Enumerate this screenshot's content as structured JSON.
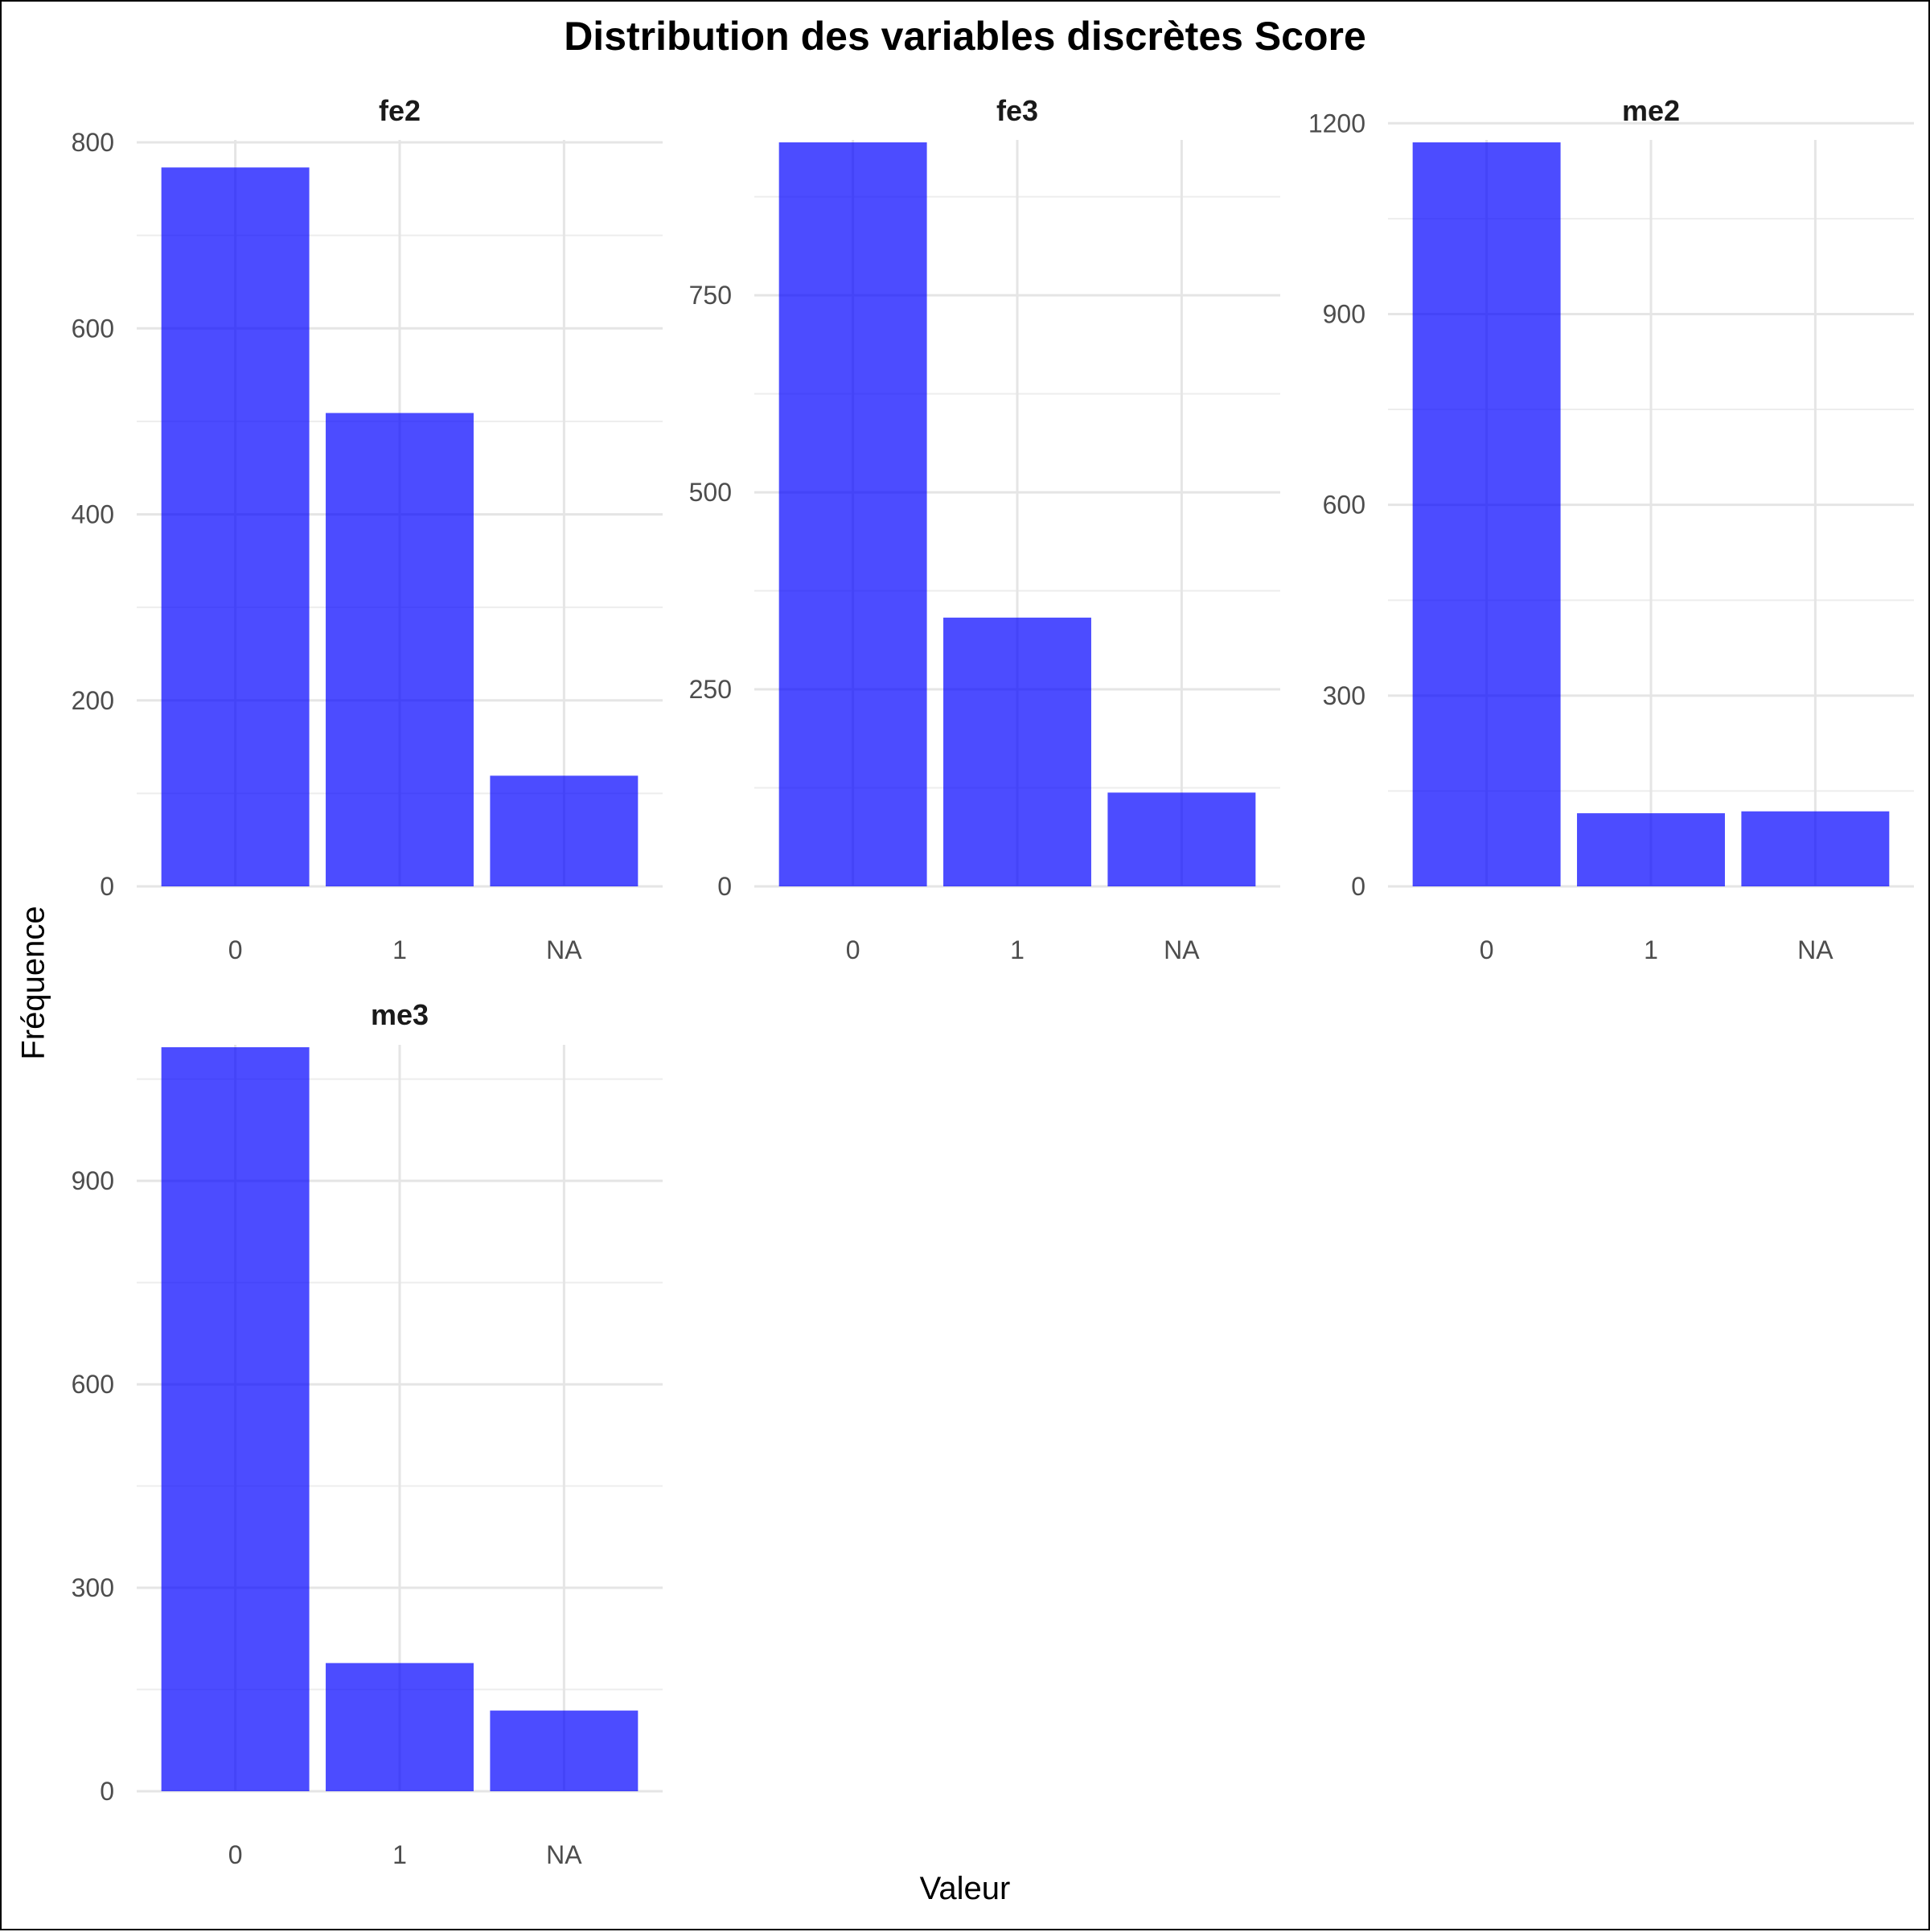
{
  "chart_data": {
    "type": "bar",
    "title": "Distribution des variables discrètes Score",
    "xlabel": "Valeur",
    "ylabel": "Fréquence",
    "bar_color": "#0000FF",
    "bar_opacity": 0.7,
    "grid": true,
    "categories": [
      "0",
      "1",
      "NA"
    ],
    "facets": [
      {
        "name": "fe2",
        "values": [
          773,
          509,
          119
        ],
        "ylim": [
          0,
          800
        ],
        "yticks": [
          0,
          200,
          400,
          600,
          800
        ]
      },
      {
        "name": "fe3",
        "values": [
          944,
          341,
          119
        ],
        "ylim": [
          0,
          944
        ],
        "yticks": [
          0,
          250,
          500,
          750
        ]
      },
      {
        "name": "me2",
        "values": [
          1170,
          115,
          118
        ],
        "ylim": [
          0,
          1170
        ],
        "yticks": [
          0,
          300,
          600,
          900,
          1200
        ]
      },
      {
        "name": "me3",
        "values": [
          1097,
          189,
          119
        ],
        "ylim": [
          0,
          1097
        ],
        "yticks": [
          0,
          300,
          600,
          900
        ]
      }
    ]
  }
}
